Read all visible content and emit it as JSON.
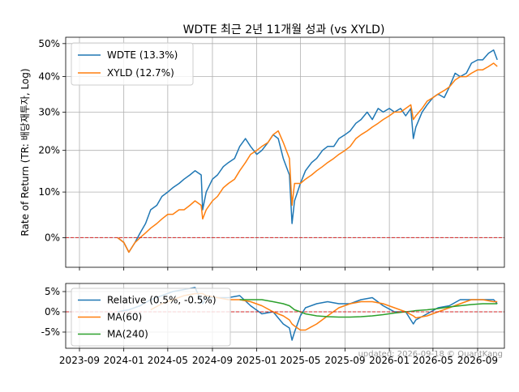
{
  "chart_data": [
    {
      "type": "line",
      "title": "WDTE 최근 2년 11개월 성과 (vs XYLD)",
      "ylabel": "Rate of Return (TR: 배당재투자, Log)",
      "y_scale": "log",
      "yticks": [
        "0%",
        "10%",
        "20%",
        "30%",
        "40%",
        "50%"
      ],
      "ytick_values": [
        0,
        10,
        20,
        30,
        40,
        50
      ],
      "ylim": [
        -6,
        52
      ],
      "grid": true,
      "legend": "top-left",
      "reference_line": {
        "y": 0,
        "color": "#d62728",
        "style": "dashed"
      },
      "x": [
        "2023-12-15",
        "2024-01-01",
        "2024-01-15",
        "2024-02-01",
        "2024-02-15",
        "2024-03-01",
        "2024-03-15",
        "2024-04-01",
        "2024-04-15",
        "2024-05-01",
        "2024-05-15",
        "2024-06-01",
        "2024-06-15",
        "2024-07-01",
        "2024-07-15",
        "2024-08-01",
        "2024-08-05",
        "2024-08-15",
        "2024-09-01",
        "2024-09-15",
        "2024-10-01",
        "2024-10-15",
        "2024-11-01",
        "2024-11-15",
        "2024-12-01",
        "2024-12-15",
        "2025-01-01",
        "2025-01-15",
        "2025-02-01",
        "2025-02-15",
        "2025-03-01",
        "2025-03-15",
        "2025-04-01",
        "2025-04-08",
        "2025-04-15",
        "2025-05-01",
        "2025-05-15",
        "2025-06-01",
        "2025-06-15",
        "2025-07-01",
        "2025-07-15",
        "2025-08-01",
        "2025-08-15",
        "2025-09-01",
        "2025-09-15",
        "2025-10-01",
        "2025-10-15",
        "2025-11-01",
        "2025-11-15",
        "2025-12-01",
        "2025-12-15",
        "2026-01-01",
        "2026-01-15",
        "2026-02-01",
        "2026-02-15",
        "2026-03-01",
        "2026-03-08",
        "2026-03-15",
        "2026-04-01",
        "2026-04-15",
        "2026-05-01",
        "2026-05-15",
        "2026-06-01",
        "2026-06-15",
        "2026-07-01",
        "2026-07-15",
        "2026-08-01",
        "2026-08-15",
        "2026-09-01",
        "2026-09-15",
        "2026-10-01",
        "2026-10-15",
        "2026-10-25"
      ],
      "series": [
        {
          "name": "WDTE (13.3%)",
          "color": "#1f77b4",
          "values": [
            0,
            -1,
            -3,
            -1,
            1,
            3,
            6,
            7,
            9,
            10,
            11,
            12,
            13,
            14,
            15,
            14,
            6,
            10,
            13,
            14,
            16,
            17,
            18,
            21,
            23,
            21,
            19,
            20,
            22,
            24,
            23,
            18,
            14,
            3,
            8,
            12,
            15,
            17,
            18,
            20,
            21,
            21,
            23,
            24,
            25,
            27,
            28,
            30,
            28,
            31,
            30,
            31,
            30,
            31,
            29,
            31,
            23,
            26,
            30,
            32,
            34,
            35,
            34,
            37,
            41,
            40,
            41,
            44,
            45,
            45,
            47,
            48,
            45
          ]
        },
        {
          "name": "XYLD (12.7%)",
          "color": "#ff7f0e",
          "values": [
            0,
            -1,
            -3,
            -1,
            0,
            1,
            2,
            3,
            4,
            5,
            5,
            6,
            6,
            7,
            8,
            7,
            4,
            6,
            8,
            9,
            11,
            12,
            13,
            15,
            17,
            19,
            20,
            21,
            22,
            24,
            25,
            22,
            18,
            7,
            12,
            12,
            13,
            14,
            15,
            16,
            17,
            18,
            19,
            20,
            21,
            23,
            24,
            25,
            26,
            27,
            28,
            29,
            30,
            30,
            31,
            32,
            28,
            29,
            31,
            33,
            34,
            35,
            36,
            37,
            39,
            40,
            40,
            41,
            42,
            42,
            43,
            44,
            43
          ]
        }
      ]
    },
    {
      "type": "line",
      "yticks": [
        "-5%",
        "0%",
        "5%"
      ],
      "ytick_values": [
        -5,
        0,
        5
      ],
      "ylim": [
        -9,
        7
      ],
      "grid": true,
      "legend": "top-left",
      "reference_line": {
        "y": 0,
        "color": "#d62728",
        "style": "dashed"
      },
      "xticks": [
        "2023-09",
        "2024-01",
        "2024-05",
        "2024-09",
        "2025-01",
        "2025-05",
        "2025-09",
        "2026-01",
        "2026-05",
        "2026-09"
      ],
      "xtick_values": [
        "2023-09-01",
        "2024-01-01",
        "2024-05-01",
        "2024-09-01",
        "2025-01-01",
        "2025-05-01",
        "2025-09-01",
        "2026-01-01",
        "2026-05-01",
        "2026-09-01"
      ],
      "x": [
        "2023-12-15",
        "2024-01-15",
        "2024-02-15",
        "2024-03-15",
        "2024-04-15",
        "2024-05-15",
        "2024-06-15",
        "2024-07-15",
        "2024-08-05",
        "2024-08-15",
        "2024-09-15",
        "2024-10-15",
        "2024-11-15",
        "2024-12-15",
        "2025-01-15",
        "2025-02-15",
        "2025-03-15",
        "2025-04-01",
        "2025-04-08",
        "2025-04-15",
        "2025-05-01",
        "2025-05-15",
        "2025-06-15",
        "2025-07-15",
        "2025-08-15",
        "2025-09-15",
        "2025-10-15",
        "2025-11-15",
        "2025-12-15",
        "2026-01-15",
        "2026-02-15",
        "2026-03-08",
        "2026-03-15",
        "2026-04-15",
        "2026-05-15",
        "2026-06-15",
        "2026-07-15",
        "2026-08-15",
        "2026-09-15",
        "2026-10-15",
        "2026-10-25"
      ],
      "series": [
        {
          "name": "Relative (0.5%, -0.5%)",
          "color": "#1f77b4",
          "values": [
            0,
            0.5,
            1.5,
            3,
            4,
            5,
            5.5,
            6,
            2,
            3.5,
            3.5,
            3.5,
            4,
            1.5,
            -0.5,
            0,
            -3,
            -4,
            -7,
            -5,
            -1,
            1,
            2,
            2.5,
            2,
            2,
            3,
            3.5,
            1.5,
            0,
            0,
            -3,
            -2,
            -0.5,
            1,
            1.5,
            3,
            3,
            3,
            3,
            2
          ]
        },
        {
          "name": "MA(60)",
          "color": "#ff7f0e",
          "values": [
            null,
            null,
            null,
            0.5,
            2,
            3,
            4,
            4.5,
            4.5,
            4,
            3.5,
            3,
            3,
            2.5,
            1.5,
            0,
            -1,
            -2,
            -3,
            -3.5,
            -4.5,
            -4.5,
            -3,
            -1,
            1,
            2,
            2.5,
            2.5,
            2,
            1,
            0,
            -1,
            -1.5,
            -1,
            0,
            1,
            2,
            3,
            3,
            2.5,
            2.5
          ]
        },
        {
          "name": "MA(240)",
          "color": "#2ca02c",
          "values": [
            null,
            null,
            null,
            null,
            null,
            null,
            null,
            null,
            null,
            null,
            null,
            null,
            3,
            3,
            3,
            2.5,
            2,
            1.5,
            1,
            0.5,
            0,
            -0.5,
            -1,
            -1.2,
            -1.3,
            -1.3,
            -1.2,
            -1,
            -0.7,
            -0.3,
            0,
            0.2,
            0.3,
            0.5,
            0.8,
            1.2,
            1.5,
            1.8,
            2,
            2,
            2
          ]
        }
      ]
    }
  ],
  "watermark": "updated: 2026-09-18 © QuantKang"
}
